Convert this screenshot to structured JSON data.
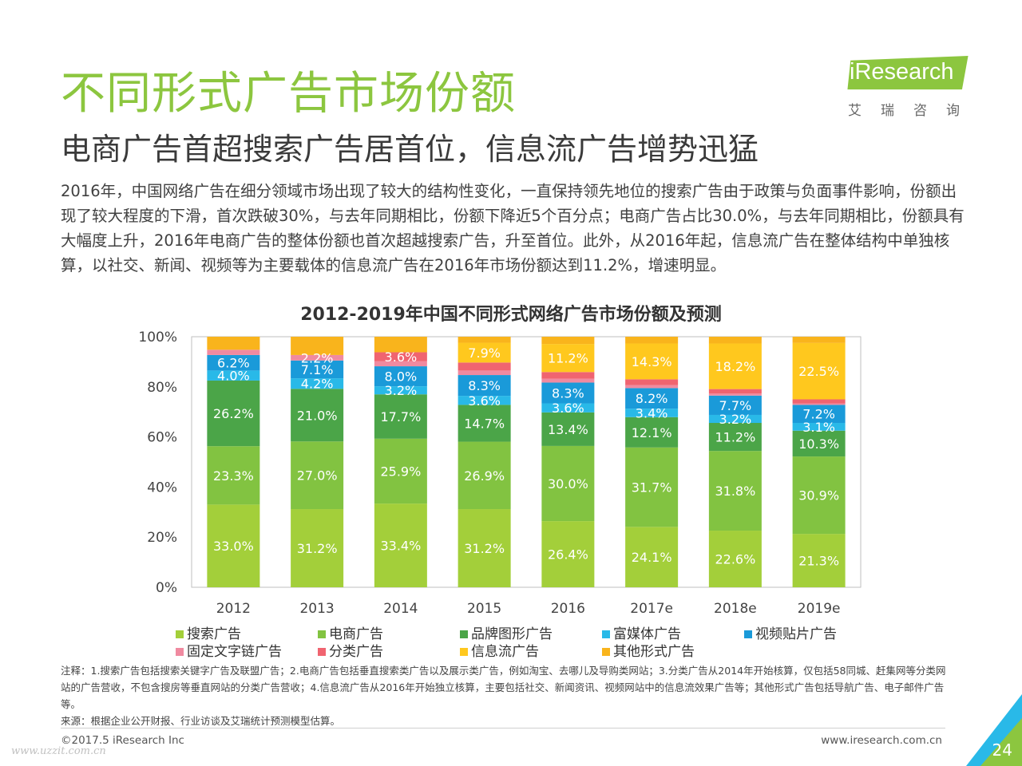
{
  "header": {
    "title": "不同形式广告市场份额",
    "subtitle": "电商广告首超搜索广告居首位，信息流广告增势迅猛"
  },
  "logo": {
    "brand": "iResearch",
    "chinese": "艾瑞咨询"
  },
  "body_text": "2016年，中国网络广告在细分领域市场出现了较大的结构性变化，一直保持领先地位的搜索广告由于政策与负面事件影响，份额出现了较大程度的下滑，首次跌破30%，与去年同期相比，份额下降近5个百分点；电商广告占比30.0%，与去年同期相比，份额具有大幅度上升，2016年电商广告的整体份额也首次超越搜索广告，升至首位。此外，从2016年起，信息流广告在整体结构中单独核算，以社交、新闻、视频等为主要载体的信息流广告在2016年市场份额达到11.2%，增速明显。",
  "colors": {
    "search": "#a3cf3a",
    "ecommerce": "#82c341",
    "brand_graphic": "#4ba548",
    "rich_media": "#29b9e8",
    "video_patch": "#1a9ad9",
    "fixed_text_link": "#f08aa0",
    "classified": "#f06470",
    "info_feed": "#ffc81e",
    "other": "#f9b41c",
    "title_green": "#8cc63f"
  },
  "chart_data": {
    "type": "bar",
    "stacked": true,
    "title": "2012-2019年中国不同形式网络广告市场份额及预测",
    "categories": [
      "2012",
      "2013",
      "2014",
      "2015",
      "2016",
      "2017e",
      "2018e",
      "2019e"
    ],
    "y_ticks": [
      "0%",
      "20%",
      "40%",
      "60%",
      "80%",
      "100%"
    ],
    "ylim": [
      0,
      100
    ],
    "unit": "%",
    "legend_position": "bottom",
    "series": [
      {
        "name": "搜索广告",
        "key": "search",
        "values": [
          33.0,
          31.2,
          33.4,
          31.2,
          26.4,
          24.1,
          22.6,
          21.3
        ]
      },
      {
        "name": "电商广告",
        "key": "ecommerce",
        "values": [
          23.3,
          27.0,
          25.9,
          26.9,
          30.0,
          31.7,
          31.8,
          30.9
        ]
      },
      {
        "name": "品牌图形广告",
        "key": "brand_graphic",
        "values": [
          26.2,
          21.0,
          17.7,
          14.7,
          13.4,
          12.1,
          11.2,
          10.3
        ]
      },
      {
        "name": "富媒体广告",
        "key": "rich_media",
        "values": [
          4.0,
          4.2,
          3.2,
          3.6,
          3.6,
          3.4,
          3.2,
          3.1
        ]
      },
      {
        "name": "视频贴片广告",
        "key": "video_patch",
        "values": [
          6.2,
          7.1,
          8.0,
          8.3,
          8.3,
          8.2,
          7.7,
          7.2
        ]
      },
      {
        "name": "固定文字链广告",
        "key": "fixed_text_link",
        "values": [
          2.1,
          2.2,
          2.0,
          1.8,
          1.5,
          1.2,
          0.8,
          0.6
        ]
      },
      {
        "name": "分类广告",
        "key": "classified",
        "values": [
          0.0,
          0.0,
          3.6,
          3.2,
          2.7,
          2.3,
          1.8,
          1.6
        ]
      },
      {
        "name": "信息流广告",
        "key": "info_feed",
        "values": [
          0.0,
          0.0,
          0.0,
          7.9,
          11.2,
          14.3,
          18.2,
          22.5
        ]
      },
      {
        "name": "其他形式广告",
        "key": "other",
        "values": [
          5.2,
          7.3,
          6.2,
          2.4,
          2.9,
          2.7,
          2.7,
          2.5
        ]
      }
    ],
    "data_labels": [
      {
        "series": "search",
        "values": [
          "33.0%",
          "31.2%",
          "33.4%",
          "31.2%",
          "26.4%",
          "24.1%",
          "22.6%",
          "21.3%"
        ]
      },
      {
        "series": "ecommerce",
        "values": [
          "23.3%",
          "27.0%",
          "25.9%",
          "26.9%",
          "30.0%",
          "31.7%",
          "31.8%",
          "30.9%"
        ]
      },
      {
        "series": "brand_graphic",
        "values": [
          "26.2%",
          "21.0%",
          "17.7%",
          "14.7%",
          "13.4%",
          "12.1%",
          "11.2%",
          "10.3%"
        ]
      },
      {
        "series": "rich_media",
        "values": [
          "4.0%",
          "4.2%",
          "3.2%",
          "3.6%",
          "3.6%",
          "3.4%",
          "3.2%",
          "3.1%"
        ]
      },
      {
        "series": "video_patch",
        "values": [
          "6.2%",
          "7.1%",
          "8.0%",
          "8.3%",
          "8.3%",
          "8.2%",
          "7.7%",
          "7.2%"
        ]
      },
      {
        "series": "fixed_text_link",
        "values": [
          "",
          "2.2%",
          "",
          "",
          "",
          "",
          "",
          ""
        ]
      },
      {
        "series": "classified",
        "values": [
          "",
          "",
          "3.6%",
          "",
          "",
          "",
          "",
          ""
        ]
      },
      {
        "series": "info_feed",
        "values": [
          "",
          "",
          "",
          "7.9%",
          "11.2%",
          "14.3%",
          "18.2%",
          "22.5%"
        ]
      }
    ]
  },
  "notes": {
    "note": "注释：1.搜索广告包括搜索关键字广告及联盟广告；2.电商广告包括垂直搜索类广告以及展示类广告，例如淘宝、去哪儿及导购类网站；3.分类广告从2014年开始核算，仅包括58同城、赶集网等分类网站的广告营收，不包含搜房等垂直网站的分类广告营收；4.信息流广告从2016年开始独立核算，主要包括社交、新闻资讯、视频网站中的信息流效果广告等；其他形式广告包括导航广告、电子邮件广告等。",
    "source": "来源：根据企业公开财报、行业访谈及艾瑞统计预测模型估算。"
  },
  "footer": {
    "copyright": "©2017.5 iResearch Inc",
    "website": "www.iresearch.com.cn",
    "page_number": "24",
    "watermark": "www.uzzit.com.cn"
  }
}
